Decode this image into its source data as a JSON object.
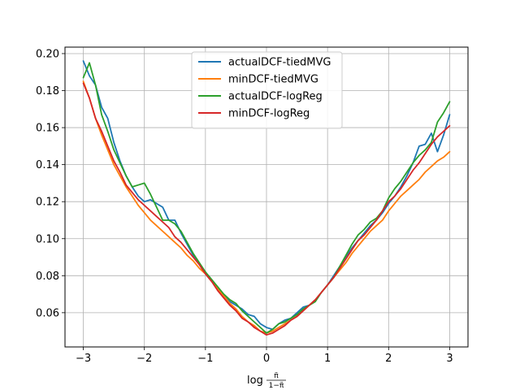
{
  "chart_data": {
    "type": "line",
    "title": "",
    "xlabel": {
      "log": "log",
      "numerator": "π̃",
      "denominator": "1−π̃"
    },
    "ylabel": "",
    "xlim": [
      -3.3,
      3.3
    ],
    "ylim": [
      0.0415,
      0.2035
    ],
    "grid": true,
    "legend_position": "top-center",
    "x_ticks": [
      -3,
      -2,
      -1,
      0,
      1,
      2,
      3
    ],
    "x_tick_labels": [
      "−3",
      "−2",
      "−1",
      "0",
      "1",
      "2",
      "3"
    ],
    "y_ticks": [
      0.06,
      0.08,
      0.1,
      0.12,
      0.14,
      0.16,
      0.18,
      0.2
    ],
    "y_tick_labels": [
      "0.06",
      "0.08",
      "0.10",
      "0.12",
      "0.14",
      "0.16",
      "0.18",
      "0.20"
    ],
    "x": [
      -3.0,
      -2.9,
      -2.8,
      -2.7,
      -2.6,
      -2.5,
      -2.4,
      -2.3,
      -2.2,
      -2.1,
      -2.0,
      -1.9,
      -1.8,
      -1.7,
      -1.6,
      -1.5,
      -1.4,
      -1.3,
      -1.2,
      -1.1,
      -1.0,
      -0.9,
      -0.8,
      -0.7,
      -0.6,
      -0.5,
      -0.4,
      -0.3,
      -0.2,
      -0.1,
      0.0,
      0.1,
      0.2,
      0.3,
      0.4,
      0.5,
      0.6,
      0.7,
      0.8,
      0.9,
      1.0,
      1.1,
      1.2,
      1.3,
      1.4,
      1.5,
      1.6,
      1.7,
      1.8,
      1.9,
      2.0,
      2.1,
      2.2,
      2.3,
      2.4,
      2.5,
      2.6,
      2.7,
      2.8,
      2.9,
      3.0
    ],
    "series": [
      {
        "name": "actualDCF-tiedMVG",
        "color": "#1f77b4",
        "values": [
          0.196,
          0.188,
          0.183,
          0.171,
          0.165,
          0.152,
          0.142,
          0.134,
          0.128,
          0.123,
          0.12,
          0.121,
          0.119,
          0.117,
          0.11,
          0.11,
          0.103,
          0.097,
          0.091,
          0.086,
          0.081,
          0.077,
          0.073,
          0.069,
          0.066,
          0.064,
          0.062,
          0.059,
          0.058,
          0.054,
          0.052,
          0.051,
          0.054,
          0.056,
          0.057,
          0.06,
          0.063,
          0.064,
          0.067,
          0.071,
          0.075,
          0.08,
          0.085,
          0.09,
          0.095,
          0.099,
          0.103,
          0.107,
          0.11,
          0.114,
          0.119,
          0.123,
          0.128,
          0.134,
          0.141,
          0.15,
          0.151,
          0.157,
          0.147,
          0.156,
          0.167
        ]
      },
      {
        "name": "minDCF-tiedMVG",
        "color": "#ff7f0e",
        "values": [
          0.185,
          0.176,
          0.165,
          0.156,
          0.148,
          0.14,
          0.134,
          0.128,
          0.123,
          0.118,
          0.114,
          0.11,
          0.107,
          0.104,
          0.101,
          0.098,
          0.095,
          0.091,
          0.088,
          0.084,
          0.081,
          0.077,
          0.073,
          0.069,
          0.065,
          0.062,
          0.058,
          0.055,
          0.053,
          0.05,
          0.049,
          0.05,
          0.052,
          0.054,
          0.056,
          0.058,
          0.061,
          0.064,
          0.067,
          0.071,
          0.075,
          0.079,
          0.083,
          0.087,
          0.092,
          0.096,
          0.1,
          0.104,
          0.107,
          0.11,
          0.115,
          0.119,
          0.123,
          0.126,
          0.129,
          0.132,
          0.136,
          0.139,
          0.142,
          0.144,
          0.147
        ]
      },
      {
        "name": "actualDCF-logReg",
        "color": "#2ca02c",
        "values": [
          0.187,
          0.195,
          0.183,
          0.167,
          0.158,
          0.148,
          0.141,
          0.134,
          0.128,
          0.129,
          0.13,
          0.124,
          0.117,
          0.11,
          0.11,
          0.108,
          0.104,
          0.098,
          0.092,
          0.087,
          0.082,
          0.078,
          0.074,
          0.07,
          0.067,
          0.065,
          0.061,
          0.058,
          0.055,
          0.052,
          0.049,
          0.051,
          0.054,
          0.055,
          0.057,
          0.059,
          0.062,
          0.064,
          0.066,
          0.071,
          0.075,
          0.079,
          0.085,
          0.091,
          0.097,
          0.102,
          0.105,
          0.109,
          0.111,
          0.115,
          0.122,
          0.127,
          0.131,
          0.136,
          0.141,
          0.145,
          0.148,
          0.152,
          0.163,
          0.168,
          0.174
        ]
      },
      {
        "name": "minDCF-logReg",
        "color": "#d62728",
        "values": [
          0.184,
          0.176,
          0.165,
          0.158,
          0.15,
          0.142,
          0.136,
          0.129,
          0.125,
          0.121,
          0.118,
          0.115,
          0.112,
          0.109,
          0.106,
          0.101,
          0.098,
          0.094,
          0.09,
          0.086,
          0.081,
          0.077,
          0.072,
          0.068,
          0.064,
          0.061,
          0.057,
          0.055,
          0.052,
          0.05,
          0.048,
          0.049,
          0.051,
          0.053,
          0.056,
          0.058,
          0.061,
          0.064,
          0.067,
          0.071,
          0.075,
          0.079,
          0.084,
          0.089,
          0.094,
          0.099,
          0.102,
          0.106,
          0.11,
          0.115,
          0.12,
          0.123,
          0.127,
          0.132,
          0.137,
          0.141,
          0.146,
          0.151,
          0.155,
          0.158,
          0.161
        ]
      }
    ]
  }
}
